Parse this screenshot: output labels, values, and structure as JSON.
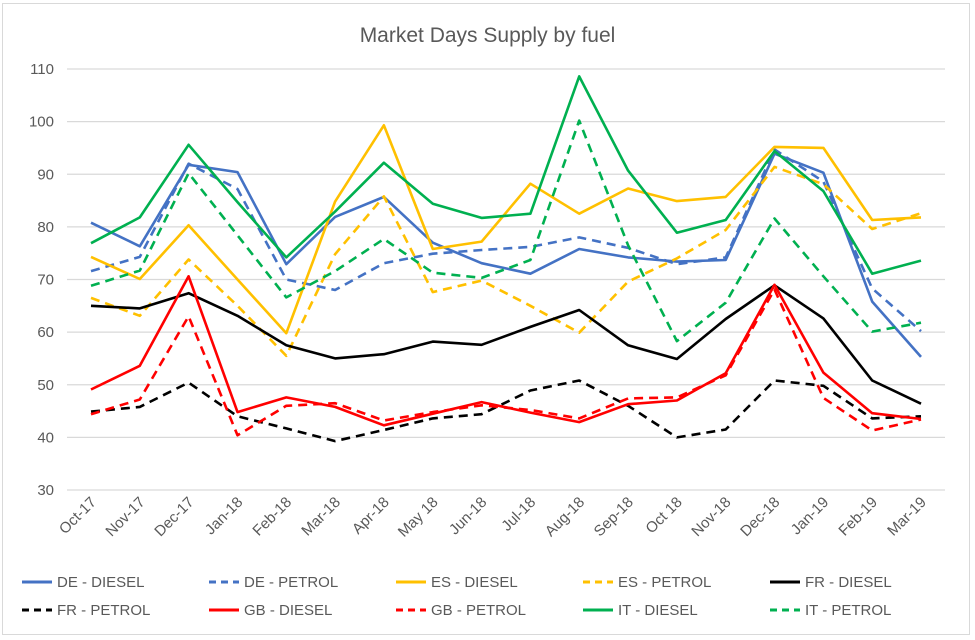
{
  "chart_data": {
    "type": "line",
    "title": "Market Days Supply by fuel",
    "xlabel": "",
    "ylabel": "",
    "ylim": [
      30,
      110
    ],
    "yticks": [
      30,
      40,
      50,
      60,
      70,
      80,
      90,
      100,
      110
    ],
    "grid": true,
    "legend_position": "bottom",
    "categories": [
      "Oct-17",
      "Nov-17",
      "Dec-17",
      "Jan-18",
      "Feb-18",
      "Mar-18",
      "Apr-18",
      "May 18",
      "Jun-18",
      "Jul-18",
      "Aug-18",
      "Sep-18",
      "Oct 18",
      "Nov-18",
      "Dec-18",
      "Jan-19",
      "Feb-19",
      "Mar-19"
    ],
    "series": [
      {
        "name": "DE - DIESEL",
        "color": "#4472c4",
        "dash": false,
        "values": [
          80.8,
          76.3,
          91.8,
          90.4,
          72.9,
          81.9,
          85.7,
          77.0,
          73.1,
          71.1,
          75.8,
          74.2,
          73.4,
          73.7,
          93.9,
          90.3,
          65.8,
          55.3
        ]
      },
      {
        "name": "DE - PETROL",
        "color": "#4472c4",
        "dash": true,
        "values": [
          71.6,
          74.3,
          92.0,
          87.2,
          70.0,
          68.0,
          73.1,
          74.9,
          75.6,
          76.2,
          78.0,
          76.0,
          72.9,
          74.2,
          94.7,
          88.6,
          68.3,
          60.2
        ]
      },
      {
        "name": "ES - DIESEL",
        "color": "#ffc000",
        "dash": false,
        "values": [
          74.3,
          70.1,
          80.3,
          70.0,
          59.8,
          84.8,
          99.3,
          75.8,
          77.2,
          88.2,
          82.5,
          87.3,
          84.9,
          85.7,
          95.2,
          95.0,
          81.3,
          81.8
        ]
      },
      {
        "name": "ES - PETROL",
        "color": "#ffc000",
        "dash": true,
        "values": [
          66.5,
          63.1,
          73.8,
          65.0,
          55.5,
          74.8,
          85.8,
          67.6,
          69.8,
          65.0,
          59.9,
          69.6,
          74.0,
          79.4,
          91.4,
          88.1,
          79.6,
          82.6
        ]
      },
      {
        "name": "FR - DIESEL",
        "color": "#000000",
        "dash": false,
        "values": [
          65.0,
          64.5,
          67.4,
          63.1,
          57.5,
          55.0,
          55.8,
          58.2,
          57.6,
          61.0,
          64.2,
          57.5,
          54.9,
          62.5,
          68.9,
          62.6,
          50.8,
          46.4
        ]
      },
      {
        "name": "FR - PETROL",
        "color": "#000000",
        "dash": true,
        "values": [
          44.9,
          45.8,
          50.4,
          44.0,
          41.7,
          39.3,
          41.4,
          43.6,
          44.4,
          48.9,
          50.8,
          46.0,
          40.0,
          41.5,
          50.8,
          49.8,
          43.6,
          44.0
        ]
      },
      {
        "name": "GB - DIESEL",
        "color": "#ff0000",
        "dash": false,
        "values": [
          49.1,
          53.6,
          70.6,
          44.8,
          47.6,
          45.8,
          42.3,
          44.5,
          46.7,
          44.7,
          42.9,
          46.3,
          47.0,
          52.2,
          69.0,
          52.3,
          44.6,
          43.5
        ]
      },
      {
        "name": "GB - PETROL",
        "color": "#ff0000",
        "dash": true,
        "values": [
          44.4,
          47.2,
          63.0,
          40.4,
          46.0,
          46.5,
          43.2,
          44.8,
          46.1,
          45.2,
          43.6,
          47.4,
          47.6,
          51.8,
          68.1,
          47.5,
          41.3,
          43.4
        ]
      },
      {
        "name": "IT - DIESEL",
        "color": "#00b050",
        "dash": false,
        "values": [
          76.9,
          81.8,
          95.6,
          84.7,
          74.2,
          82.9,
          92.2,
          84.4,
          81.7,
          82.5,
          108.6,
          90.7,
          78.9,
          81.3,
          94.4,
          86.8,
          71.1,
          73.6
        ]
      },
      {
        "name": "IT - PETROL",
        "color": "#00b050",
        "dash": true,
        "values": [
          68.8,
          71.7,
          90.2,
          78.4,
          66.6,
          71.6,
          77.7,
          71.3,
          70.3,
          73.7,
          100.2,
          76.5,
          58.3,
          65.6,
          81.6,
          70.6,
          60.1,
          61.8
        ]
      }
    ]
  }
}
